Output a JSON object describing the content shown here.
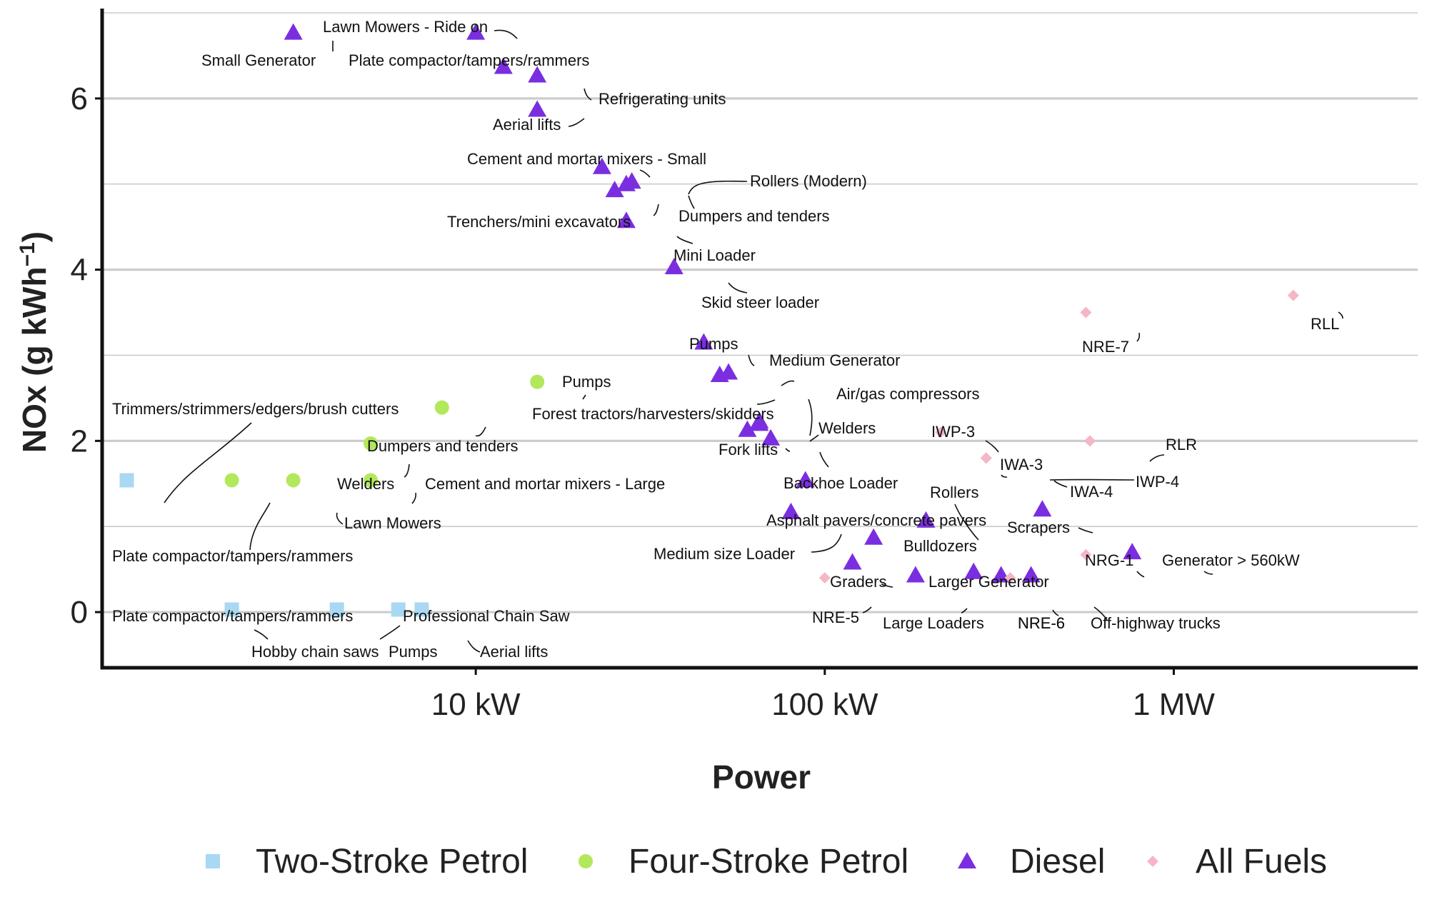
{
  "colors": {
    "two_stroke": "#a9d8f2",
    "four_stroke": "#b2e85c",
    "diesel": "#7a2ee0",
    "all_fuels": "#f5b6c6",
    "grid": "#cccccc",
    "axis": "#111111"
  },
  "chart_data": {
    "type": "scatter",
    "xlabel": "Power",
    "ylabel": "NOx (g kWh",
    "ylabel_exponent": "−1",
    "ylabel_close": ")",
    "x_scale": "log",
    "x_unit": "kW",
    "xlim": [
      0.85,
      5000
    ],
    "ylim": [
      -0.65,
      7.05
    ],
    "x_ticks": [
      {
        "value": 10,
        "label": "10 kW"
      },
      {
        "value": 100,
        "label": "100 kW"
      },
      {
        "value": 1000,
        "label": "1 MW"
      }
    ],
    "y_ticks": [
      {
        "value": 0,
        "label": "0"
      },
      {
        "value": 2,
        "label": "2"
      },
      {
        "value": 4,
        "label": "4"
      },
      {
        "value": 6,
        "label": "6"
      }
    ],
    "grid": "horizontal major and minor",
    "legend_position": "bottom",
    "series": [
      {
        "name": "Two-Stroke Petrol",
        "key": "two_stroke",
        "shape": "square",
        "points": [
          {
            "x": 1.0,
            "y": 1.54,
            "label": "Trimmers/strimmers/edgers/brush cutters"
          },
          {
            "x": 2.0,
            "y": 0.03,
            "label": "Plate compactor/tampers/rammers"
          },
          {
            "x": 2.0,
            "y": 0.03,
            "label": "Hobby chain saws"
          },
          {
            "x": 4.0,
            "y": 0.03,
            "label": "Professional Chain Saw"
          },
          {
            "x": 6.0,
            "y": 0.03,
            "label": "Pumps"
          },
          {
            "x": 7.0,
            "y": 0.03,
            "label": "Aerial lifts"
          }
        ]
      },
      {
        "name": "Four-Stroke Petrol",
        "key": "four_stroke",
        "shape": "circle",
        "points": [
          {
            "x": 2.0,
            "y": 1.54,
            "label": "Plate compactor/tampers/rammers"
          },
          {
            "x": 3.0,
            "y": 1.54,
            "label": "Lawn Mowers"
          },
          {
            "x": 5.0,
            "y": 1.54,
            "label": "Cement and mortar mixers - Large"
          },
          {
            "x": 5.0,
            "y": 1.97,
            "label": "Welders"
          },
          {
            "x": 8.0,
            "y": 2.39,
            "label": "Dumpers and tenders"
          },
          {
            "x": 15.0,
            "y": 2.69,
            "label": "Pumps"
          }
        ]
      },
      {
        "name": "Diesel",
        "key": "diesel",
        "shape": "triangle",
        "points": [
          {
            "x": 3.0,
            "y": 6.77,
            "label": "Small Generator"
          },
          {
            "x": 10.0,
            "y": 6.77,
            "label": "Lawn Mowers - Ride on"
          },
          {
            "x": 12.0,
            "y": 6.37,
            "label": "Plate compactor/tampers/rammers"
          },
          {
            "x": 15.0,
            "y": 6.27,
            "label": "Refrigerating units"
          },
          {
            "x": 15.0,
            "y": 5.87,
            "label": "Aerial lifts"
          },
          {
            "x": 23.0,
            "y": 5.2,
            "label": "Cement and mortar mixers - Small"
          },
          {
            "x": 28.0,
            "y": 5.03,
            "label": "Rollers (Modern)"
          },
          {
            "x": 27.0,
            "y": 5.0,
            "label": "Dumpers and tenders"
          },
          {
            "x": 25.0,
            "y": 4.93,
            "label": "Trenchers/mini excavators"
          },
          {
            "x": 27.0,
            "y": 4.57,
            "label": "Mini Loader"
          },
          {
            "x": 37.0,
            "y": 4.03,
            "label": "Skid steer loader"
          },
          {
            "x": 45.0,
            "y": 3.15,
            "label": "Pumps"
          },
          {
            "x": 53.0,
            "y": 2.8,
            "label": "Medium Generator"
          },
          {
            "x": 50.0,
            "y": 2.77,
            "label": "Forest tractors/harvesters/skidders"
          },
          {
            "x": 65.0,
            "y": 2.23,
            "label": "Air/gas compressors"
          },
          {
            "x": 60.0,
            "y": 2.13,
            "label": "Fork lifts"
          },
          {
            "x": 65.0,
            "y": 2.2,
            "label": "Welders"
          },
          {
            "x": 70.0,
            "y": 2.03,
            "label": "Backhoe Loader"
          },
          {
            "x": 88.0,
            "y": 1.54,
            "label": "Asphalt pavers/concrete pavers"
          },
          {
            "x": 80.0,
            "y": 1.17,
            "label": "Medium size Loader"
          },
          {
            "x": 195.0,
            "y": 1.07,
            "label": "Rollers"
          },
          {
            "x": 138.0,
            "y": 0.87,
            "label": "Bulldozers"
          },
          {
            "x": 120.0,
            "y": 0.58,
            "label": "Graders"
          },
          {
            "x": 182.0,
            "y": 0.43,
            "label": "Large Loaders"
          },
          {
            "x": 267.0,
            "y": 0.47,
            "label": "Larger Generator"
          },
          {
            "x": 320.0,
            "y": 0.43,
            "label": "NRE-6"
          },
          {
            "x": 390.0,
            "y": 0.43,
            "label": "Off-highway trucks"
          },
          {
            "x": 420.0,
            "y": 1.2,
            "label": "Scrapers"
          },
          {
            "x": 760.0,
            "y": 0.7,
            "label": "Generator > 560kW"
          }
        ]
      },
      {
        "name": "All Fuels",
        "key": "all_fuels",
        "shape": "diamond",
        "points": [
          {
            "x": 560.0,
            "y": 3.5,
            "label": "NRE-7"
          },
          {
            "x": 2200.0,
            "y": 3.7,
            "label": "RLL"
          },
          {
            "x": 215.0,
            "y": 2.1,
            "label": "IWP-3"
          },
          {
            "x": 290.0,
            "y": 1.8,
            "label": "IWA-3"
          },
          {
            "x": 290.0,
            "y": 1.8,
            "label": "IWA-4"
          },
          {
            "x": 575.0,
            "y": 2.0,
            "label": "RLR"
          },
          {
            "x": 575.0,
            "y": 2.0,
            "label": "IWP-4"
          },
          {
            "x": 560.0,
            "y": 0.67,
            "label": "NRG-1"
          },
          {
            "x": 100.0,
            "y": 0.4,
            "label": "NRE-5"
          },
          {
            "x": 340.0,
            "y": 0.4,
            "label": "NRE-6"
          }
        ]
      }
    ]
  }
}
